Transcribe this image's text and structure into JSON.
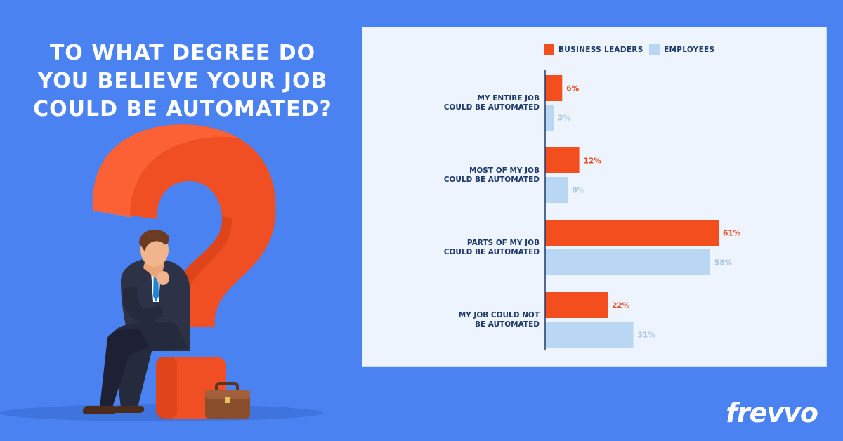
{
  "headline": {
    "line1": "TO WHAT DEGREE DO",
    "line2": "YOU BELIEVE YOUR JOB",
    "line3": "COULD BE AUTOMATED?"
  },
  "brand": "frevvo",
  "colors": {
    "background": "#4a82f2",
    "business_leaders": "#f24e1e",
    "employees": "#b9d6f2",
    "label_text": "#1e3a6b",
    "question_mark": "#f04f23"
  },
  "illustration": {
    "icons": [
      "question-mark-icon",
      "businessman-icon",
      "briefcase-icon"
    ]
  },
  "chart_data": {
    "type": "bar",
    "orientation": "horizontal",
    "categories": [
      [
        "MY ENTIRE JOB",
        "COULD BE AUTOMATED"
      ],
      [
        "MOST OF MY JOB",
        "COULD BE AUTOMATED"
      ],
      [
        "PARTS OF MY JOB",
        "COULD BE AUTOMATED"
      ],
      [
        "MY JOB COULD NOT",
        "BE AUTOMATED"
      ]
    ],
    "series": [
      {
        "name": "BUSINESS LEADERS",
        "values": [
          6,
          12,
          61,
          22
        ],
        "labels": [
          "6%",
          "12%",
          "61%",
          "22%"
        ]
      },
      {
        "name": "EMPLOYEES",
        "values": [
          3,
          8,
          58,
          31
        ],
        "labels": [
          "3%",
          "8%",
          "58%",
          "31%"
        ]
      }
    ],
    "legend_position": "top-right",
    "grid": false
  }
}
